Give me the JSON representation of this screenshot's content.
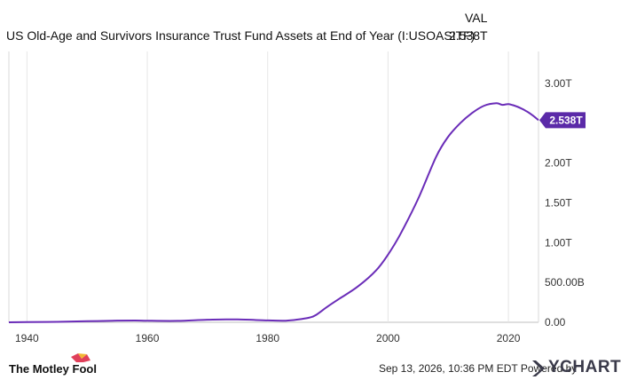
{
  "header": {
    "title": "US Old-Age and Survivors Insurance Trust Fund Assets at End of Year (I:USOASITF)",
    "val_label": "VAL",
    "val_value": "2.538T"
  },
  "footer": {
    "timestamp": "Sep 13, 2026, 10:36 PM EDT",
    "powered_by": "Powered by",
    "brand_right": "YCHARTS",
    "brand_left": "The Motley Fool"
  },
  "colors": {
    "line": "#6a2cb8",
    "badge": "#5b2aa8",
    "grid": "#e6e6e6"
  },
  "chart_data": {
    "type": "line",
    "title": "US Old-Age and Survivors Insurance Trust Fund Assets at End of Year (I:USOASITF)",
    "xlabel": "",
    "ylabel": "",
    "xlim": [
      1937,
      2025
    ],
    "ylim": [
      0,
      3.4
    ],
    "x_ticks": [
      1940,
      1960,
      1980,
      2000,
      2020
    ],
    "y_ticks": [
      0,
      0.5,
      1.0,
      1.5,
      2.0,
      3.0
    ],
    "y_tick_labels": [
      "0.00",
      "500.00B",
      "1.00T",
      "1.50T",
      "2.00T",
      "3.00T"
    ],
    "grid": "vertical",
    "last_value_label": "2.538T",
    "series": [
      {
        "name": "",
        "x": [
          1937,
          1940,
          1945,
          1950,
          1955,
          1958,
          1960,
          1965,
          1970,
          1975,
          1980,
          1983,
          1985,
          1987,
          1988,
          1990,
          1992,
          1995,
          1998,
          2000,
          2002,
          2005,
          2008,
          2010,
          2012,
          2014,
          2016,
          2018,
          2019,
          2020,
          2021,
          2022,
          2023,
          2024,
          2025
        ],
        "y": [
          0.0,
          0.002,
          0.006,
          0.013,
          0.021,
          0.022,
          0.02,
          0.018,
          0.032,
          0.036,
          0.023,
          0.02,
          0.035,
          0.06,
          0.09,
          0.2,
          0.3,
          0.45,
          0.65,
          0.85,
          1.1,
          1.55,
          2.08,
          2.33,
          2.5,
          2.63,
          2.72,
          2.75,
          2.73,
          2.74,
          2.72,
          2.69,
          2.65,
          2.6,
          2.538
        ]
      }
    ]
  }
}
